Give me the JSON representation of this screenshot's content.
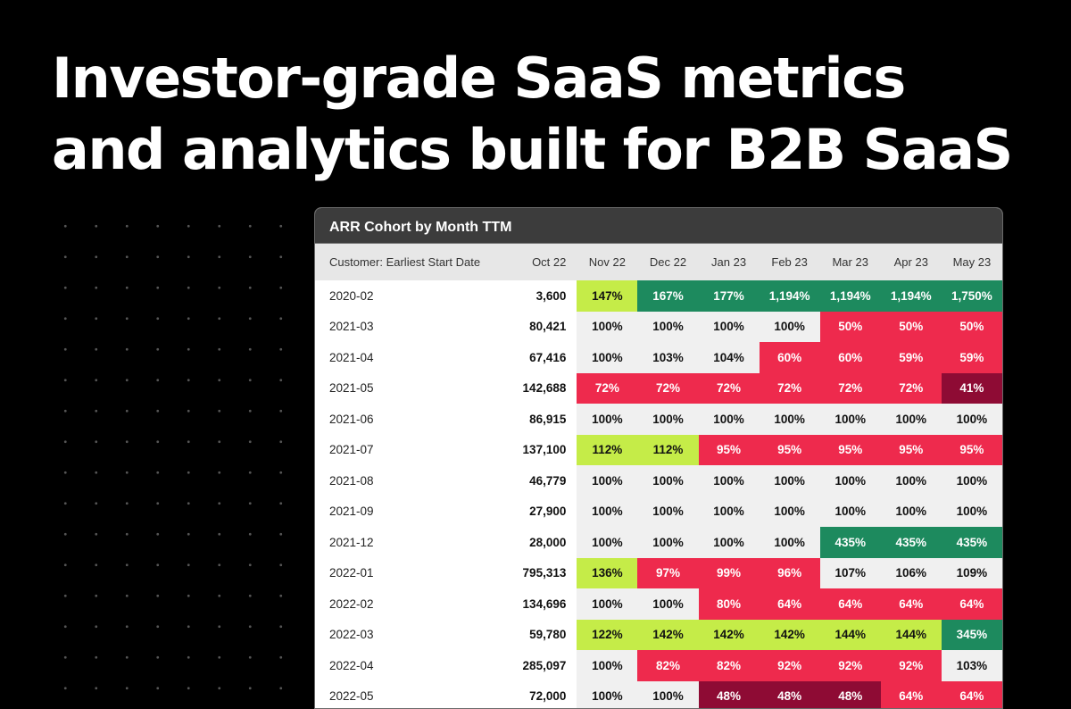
{
  "headline": {
    "line1": "Investor-grade SaaS metrics",
    "line2": "and analytics built for B2B SaaS"
  },
  "panel": {
    "title": "ARR Cohort by Month TTM",
    "columns": [
      "Customer: Earliest Start Date",
      "Oct 22",
      "Nov 22",
      "Dec 22",
      "Jan 23",
      "Feb 23",
      "Mar 23",
      "Apr 23",
      "May 23"
    ],
    "rows": [
      {
        "cohort": "2020-02",
        "start": "3,600",
        "cells": [
          [
            "147%",
            "lime"
          ],
          [
            "167%",
            "green"
          ],
          [
            "177%",
            "green"
          ],
          [
            "1,194%",
            "green"
          ],
          [
            "1,194%",
            "green"
          ],
          [
            "1,194%",
            "green"
          ],
          [
            "1,750%",
            "green"
          ]
        ]
      },
      {
        "cohort": "2021-03",
        "start": "80,421",
        "cells": [
          [
            "100%",
            "grey"
          ],
          [
            "100%",
            "grey"
          ],
          [
            "100%",
            "grey"
          ],
          [
            "100%",
            "grey"
          ],
          [
            "50%",
            "red"
          ],
          [
            "50%",
            "red"
          ],
          [
            "50%",
            "red"
          ]
        ]
      },
      {
        "cohort": "2021-04",
        "start": "67,416",
        "cells": [
          [
            "100%",
            "grey"
          ],
          [
            "103%",
            "grey"
          ],
          [
            "104%",
            "grey"
          ],
          [
            "60%",
            "red"
          ],
          [
            "60%",
            "red"
          ],
          [
            "59%",
            "red"
          ],
          [
            "59%",
            "red"
          ]
        ]
      },
      {
        "cohort": "2021-05",
        "start": "142,688",
        "cells": [
          [
            "72%",
            "red"
          ],
          [
            "72%",
            "red"
          ],
          [
            "72%",
            "red"
          ],
          [
            "72%",
            "red"
          ],
          [
            "72%",
            "red"
          ],
          [
            "72%",
            "red"
          ],
          [
            "41%",
            "dark"
          ]
        ]
      },
      {
        "cohort": "2021-06",
        "start": "86,915",
        "cells": [
          [
            "100%",
            "grey"
          ],
          [
            "100%",
            "grey"
          ],
          [
            "100%",
            "grey"
          ],
          [
            "100%",
            "grey"
          ],
          [
            "100%",
            "grey"
          ],
          [
            "100%",
            "grey"
          ],
          [
            "100%",
            "grey"
          ]
        ]
      },
      {
        "cohort": "2021-07",
        "start": "137,100",
        "cells": [
          [
            "112%",
            "lime"
          ],
          [
            "112%",
            "lime"
          ],
          [
            "95%",
            "red"
          ],
          [
            "95%",
            "red"
          ],
          [
            "95%",
            "red"
          ],
          [
            "95%",
            "red"
          ],
          [
            "95%",
            "red"
          ]
        ]
      },
      {
        "cohort": "2021-08",
        "start": "46,779",
        "cells": [
          [
            "100%",
            "grey"
          ],
          [
            "100%",
            "grey"
          ],
          [
            "100%",
            "grey"
          ],
          [
            "100%",
            "grey"
          ],
          [
            "100%",
            "grey"
          ],
          [
            "100%",
            "grey"
          ],
          [
            "100%",
            "grey"
          ]
        ]
      },
      {
        "cohort": "2021-09",
        "start": "27,900",
        "cells": [
          [
            "100%",
            "grey"
          ],
          [
            "100%",
            "grey"
          ],
          [
            "100%",
            "grey"
          ],
          [
            "100%",
            "grey"
          ],
          [
            "100%",
            "grey"
          ],
          [
            "100%",
            "grey"
          ],
          [
            "100%",
            "grey"
          ]
        ]
      },
      {
        "cohort": "2021-12",
        "start": "28,000",
        "cells": [
          [
            "100%",
            "grey"
          ],
          [
            "100%",
            "grey"
          ],
          [
            "100%",
            "grey"
          ],
          [
            "100%",
            "grey"
          ],
          [
            "435%",
            "green"
          ],
          [
            "435%",
            "green"
          ],
          [
            "435%",
            "green"
          ]
        ]
      },
      {
        "cohort": "2022-01",
        "start": "795,313",
        "cells": [
          [
            "136%",
            "lime"
          ],
          [
            "97%",
            "red"
          ],
          [
            "99%",
            "red"
          ],
          [
            "96%",
            "red"
          ],
          [
            "107%",
            "grey"
          ],
          [
            "106%",
            "grey"
          ],
          [
            "109%",
            "grey"
          ]
        ]
      },
      {
        "cohort": "2022-02",
        "start": "134,696",
        "cells": [
          [
            "100%",
            "grey"
          ],
          [
            "100%",
            "grey"
          ],
          [
            "80%",
            "red"
          ],
          [
            "64%",
            "red"
          ],
          [
            "64%",
            "red"
          ],
          [
            "64%",
            "red"
          ],
          [
            "64%",
            "red"
          ]
        ]
      },
      {
        "cohort": "2022-03",
        "start": "59,780",
        "cells": [
          [
            "122%",
            "lime"
          ],
          [
            "142%",
            "lime"
          ],
          [
            "142%",
            "lime"
          ],
          [
            "142%",
            "lime"
          ],
          [
            "144%",
            "lime"
          ],
          [
            "144%",
            "lime"
          ],
          [
            "345%",
            "green"
          ]
        ]
      },
      {
        "cohort": "2022-04",
        "start": "285,097",
        "cells": [
          [
            "100%",
            "grey"
          ],
          [
            "82%",
            "red"
          ],
          [
            "82%",
            "red"
          ],
          [
            "92%",
            "red"
          ],
          [
            "92%",
            "red"
          ],
          [
            "92%",
            "red"
          ],
          [
            "103%",
            "grey"
          ]
        ]
      },
      {
        "cohort": "2022-05",
        "start": "72,000",
        "cells": [
          [
            "100%",
            "grey"
          ],
          [
            "100%",
            "grey"
          ],
          [
            "48%",
            "dark"
          ],
          [
            "48%",
            "dark"
          ],
          [
            "48%",
            "dark"
          ],
          [
            "64%",
            "red"
          ],
          [
            "64%",
            "red"
          ]
        ]
      }
    ]
  },
  "colors": {
    "lime": "#c5ec48",
    "green": "#1d8a5e",
    "red": "#ee2a4d",
    "dark": "#8e0b34",
    "grey": "#f0f0f0"
  }
}
